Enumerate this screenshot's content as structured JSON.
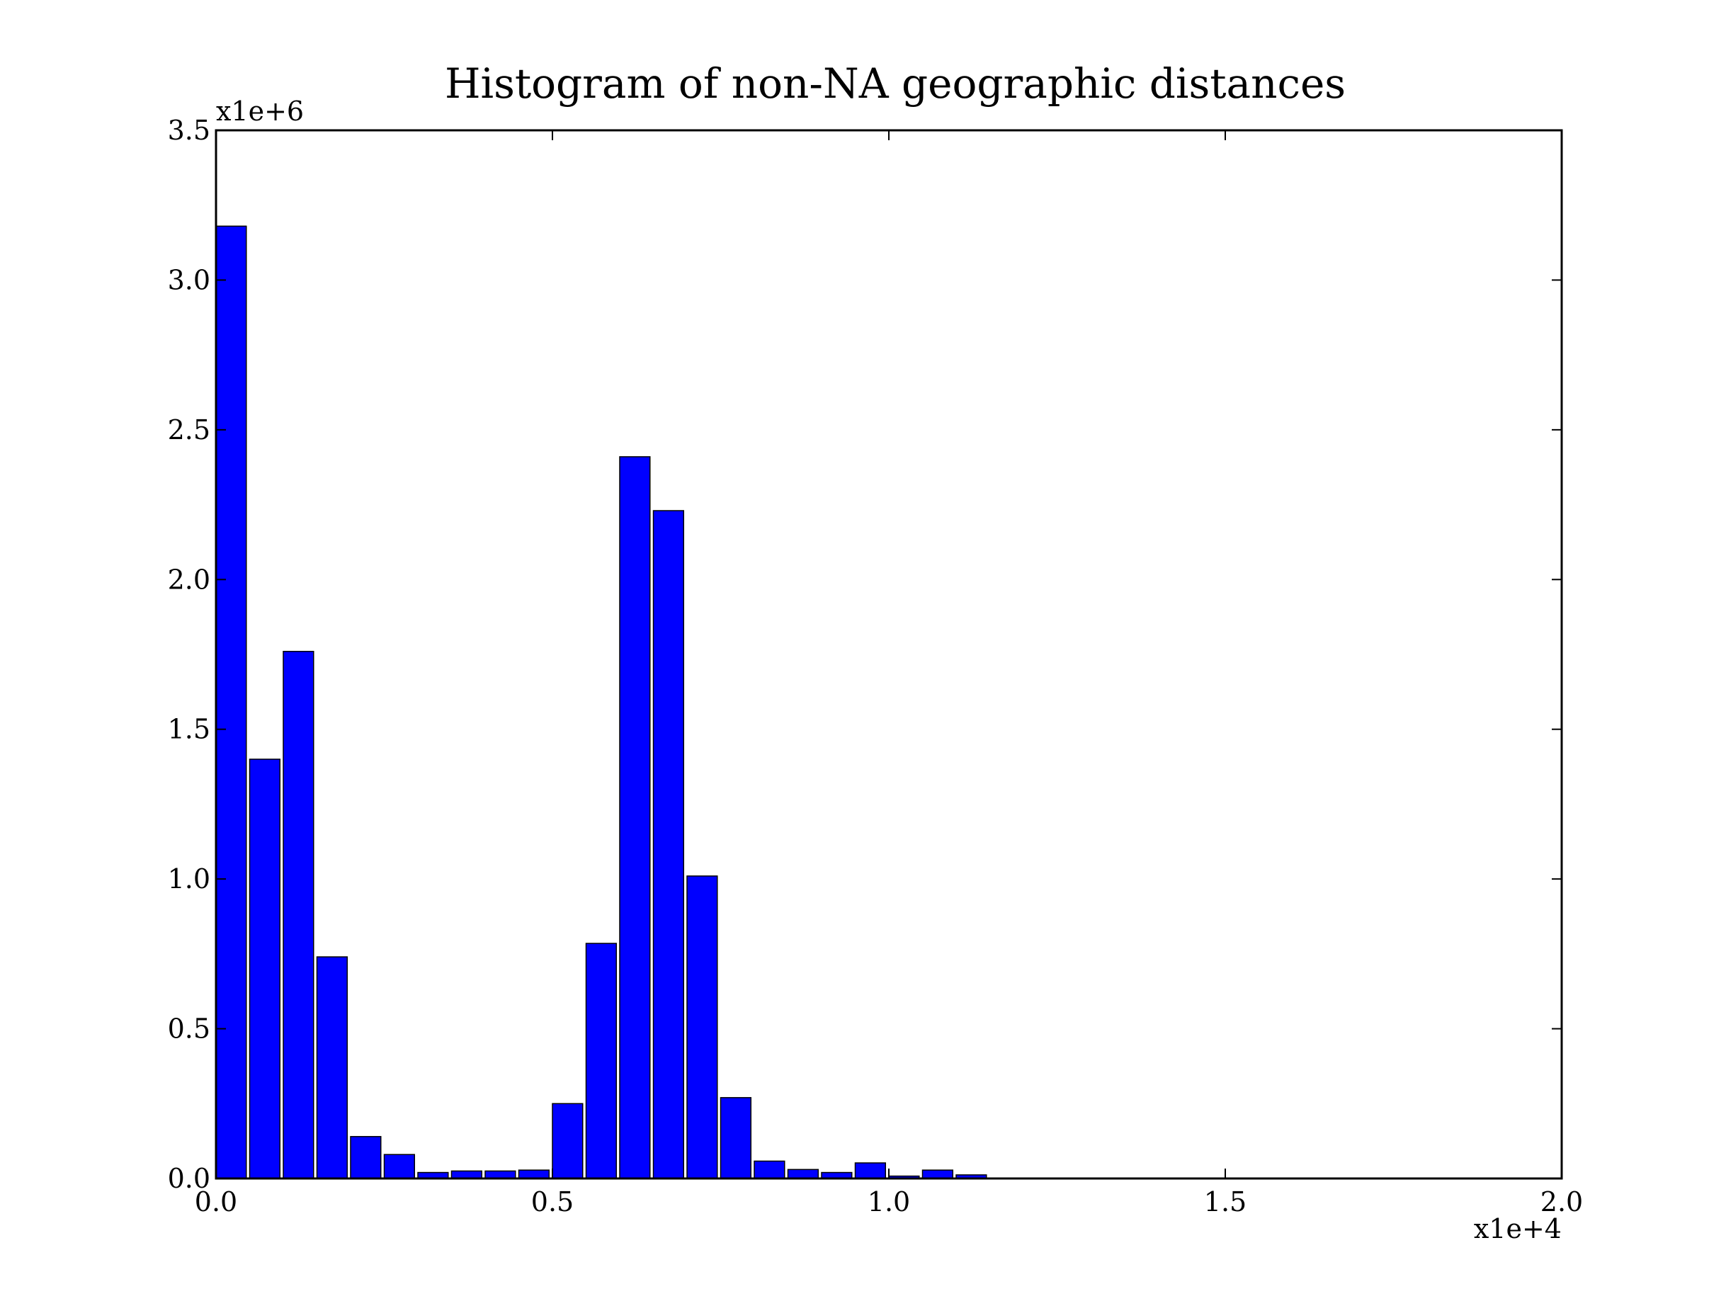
{
  "chart_data": {
    "type": "bar",
    "title": "Histogram of non-NA geographic distances",
    "xlabel": "",
    "ylabel": "",
    "x_offset_label": "x1e+4",
    "y_offset_label": "x1e+6",
    "xlim": [
      0.0,
      2.0
    ],
    "ylim": [
      0.0,
      3.5
    ],
    "x_ticks": [
      0.0,
      0.5,
      1.0,
      1.5,
      2.0
    ],
    "x_tick_labels": [
      "0.0",
      "0.5",
      "1.0",
      "1.5",
      "2.0"
    ],
    "y_ticks": [
      0.0,
      0.5,
      1.0,
      1.5,
      2.0,
      2.5,
      3.0,
      3.5
    ],
    "y_tick_labels": [
      "0.0",
      "0.5",
      "1.0",
      "1.5",
      "2.0",
      "2.5",
      "3.0",
      "3.5"
    ],
    "bin_width": 0.05,
    "bar_color": "#0000ff",
    "bar_edge_color": "#000000",
    "grid": false,
    "legend": "none",
    "bins": [
      {
        "x": 0.0,
        "value": 3.18
      },
      {
        "x": 0.05,
        "value": 1.4
      },
      {
        "x": 0.1,
        "value": 1.76
      },
      {
        "x": 0.15,
        "value": 0.74
      },
      {
        "x": 0.2,
        "value": 0.14
      },
      {
        "x": 0.25,
        "value": 0.08
      },
      {
        "x": 0.3,
        "value": 0.02
      },
      {
        "x": 0.35,
        "value": 0.025
      },
      {
        "x": 0.4,
        "value": 0.025
      },
      {
        "x": 0.45,
        "value": 0.028
      },
      {
        "x": 0.5,
        "value": 0.25
      },
      {
        "x": 0.55,
        "value": 0.785
      },
      {
        "x": 0.6,
        "value": 2.41
      },
      {
        "x": 0.65,
        "value": 2.23
      },
      {
        "x": 0.7,
        "value": 1.01
      },
      {
        "x": 0.75,
        "value": 0.27
      },
      {
        "x": 0.8,
        "value": 0.058
      },
      {
        "x": 0.85,
        "value": 0.03
      },
      {
        "x": 0.9,
        "value": 0.02
      },
      {
        "x": 0.95,
        "value": 0.052
      },
      {
        "x": 1.0,
        "value": 0.008
      },
      {
        "x": 1.05,
        "value": 0.028
      },
      {
        "x": 1.1,
        "value": 0.012
      }
    ]
  }
}
